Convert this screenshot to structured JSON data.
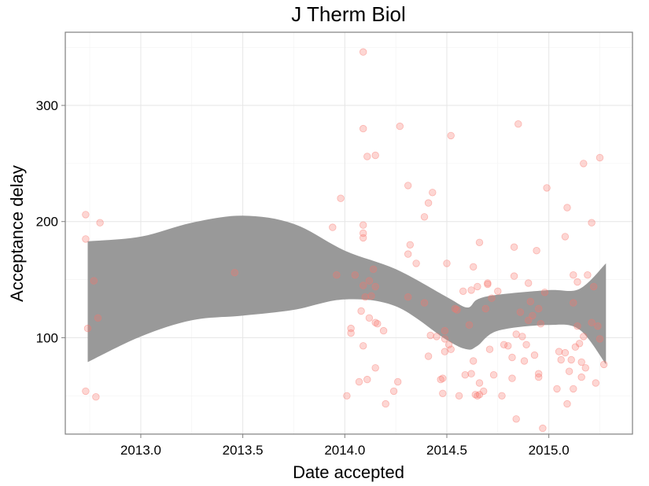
{
  "chart_data": {
    "type": "scatter",
    "title": "J Therm Biol",
    "xlabel": "Date accepted",
    "ylabel": "Acceptance delay",
    "xlim": [
      2012.63,
      2015.41
    ],
    "ylim": [
      17,
      363
    ],
    "xticks": [
      2013.0,
      2013.5,
      2014.0,
      2014.5,
      2015.0
    ],
    "xtick_labels": [
      "2013.0",
      "2013.5",
      "2014.0",
      "2014.5",
      "2015.0"
    ],
    "yticks": [
      100,
      200,
      300
    ],
    "ytick_labels": [
      "100",
      "200",
      "300"
    ],
    "grid": true,
    "point_color": "#f8766d",
    "band_color": "#999999",
    "points": [
      [
        2012.73,
        206
      ],
      [
        2012.73,
        185
      ],
      [
        2012.74,
        108
      ],
      [
        2012.73,
        54
      ],
      [
        2012.78,
        49
      ],
      [
        2012.77,
        149
      ],
      [
        2012.8,
        199
      ],
      [
        2012.79,
        117
      ],
      [
        2013.46,
        156
      ],
      [
        2013.94,
        195
      ],
      [
        2013.96,
        154
      ],
      [
        2013.98,
        220
      ],
      [
        2014.01,
        50
      ],
      [
        2014.03,
        108
      ],
      [
        2014.03,
        104
      ],
      [
        2014.05,
        154
      ],
      [
        2014.07,
        62
      ],
      [
        2014.08,
        123
      ],
      [
        2014.09,
        93
      ],
      [
        2014.09,
        346
      ],
      [
        2014.09,
        280
      ],
      [
        2014.09,
        197
      ],
      [
        2014.09,
        190
      ],
      [
        2014.09,
        186
      ],
      [
        2014.09,
        145
      ],
      [
        2014.1,
        135
      ],
      [
        2014.11,
        64
      ],
      [
        2014.11,
        256
      ],
      [
        2014.12,
        117
      ],
      [
        2014.12,
        149
      ],
      [
        2014.13,
        136
      ],
      [
        2014.14,
        159
      ],
      [
        2014.15,
        74
      ],
      [
        2014.15,
        113
      ],
      [
        2014.15,
        144
      ],
      [
        2014.16,
        112
      ],
      [
        2014.15,
        257
      ],
      [
        2014.19,
        106
      ],
      [
        2014.2,
        43
      ],
      [
        2014.24,
        54
      ],
      [
        2014.26,
        62
      ],
      [
        2014.27,
        282
      ],
      [
        2014.31,
        231
      ],
      [
        2014.31,
        172
      ],
      [
        2014.31,
        135
      ],
      [
        2014.32,
        180
      ],
      [
        2014.35,
        164
      ],
      [
        2014.39,
        204
      ],
      [
        2014.39,
        130
      ],
      [
        2014.41,
        216
      ],
      [
        2014.41,
        84
      ],
      [
        2014.42,
        102
      ],
      [
        2014.43,
        225
      ],
      [
        2014.45,
        101
      ],
      [
        2014.47,
        64
      ],
      [
        2014.48,
        52
      ],
      [
        2014.48,
        65
      ],
      [
        2014.49,
        88
      ],
      [
        2014.49,
        106
      ],
      [
        2014.49,
        99
      ],
      [
        2014.5,
        164
      ],
      [
        2014.51,
        94
      ],
      [
        2014.52,
        274
      ],
      [
        2014.52,
        90
      ],
      [
        2014.54,
        125
      ],
      [
        2014.55,
        124
      ],
      [
        2014.56,
        50
      ],
      [
        2014.58,
        140
      ],
      [
        2014.59,
        68
      ],
      [
        2014.61,
        111
      ],
      [
        2014.62,
        69
      ],
      [
        2014.62,
        141
      ],
      [
        2014.63,
        161
      ],
      [
        2014.63,
        80
      ],
      [
        2014.64,
        51
      ],
      [
        2014.65,
        50
      ],
      [
        2014.65,
        144
      ],
      [
        2014.66,
        182
      ],
      [
        2014.66,
        61
      ],
      [
        2014.66,
        51
      ],
      [
        2014.68,
        54
      ],
      [
        2014.69,
        125
      ],
      [
        2014.7,
        147
      ],
      [
        2014.7,
        146
      ],
      [
        2014.71,
        90
      ],
      [
        2014.72,
        134
      ],
      [
        2014.73,
        68
      ],
      [
        2014.75,
        140
      ],
      [
        2014.77,
        50
      ],
      [
        2014.78,
        94
      ],
      [
        2014.8,
        93
      ],
      [
        2014.82,
        65
      ],
      [
        2014.82,
        83
      ],
      [
        2014.83,
        178
      ],
      [
        2014.83,
        153
      ],
      [
        2014.84,
        103
      ],
      [
        2014.84,
        30
      ],
      [
        2014.85,
        284
      ],
      [
        2014.86,
        122
      ],
      [
        2014.87,
        101
      ],
      [
        2014.88,
        80
      ],
      [
        2014.89,
        94
      ],
      [
        2014.9,
        115
      ],
      [
        2014.9,
        147
      ],
      [
        2014.91,
        131
      ],
      [
        2014.92,
        119
      ],
      [
        2014.93,
        85
      ],
      [
        2014.94,
        175
      ],
      [
        2014.95,
        69
      ],
      [
        2014.95,
        66
      ],
      [
        2014.95,
        125
      ],
      [
        2014.96,
        112
      ],
      [
        2014.97,
        22
      ],
      [
        2014.98,
        139
      ],
      [
        2014.99,
        229
      ],
      [
        2015.04,
        56
      ],
      [
        2015.05,
        88
      ],
      [
        2015.06,
        81
      ],
      [
        2015.08,
        187
      ],
      [
        2015.08,
        87
      ],
      [
        2015.09,
        43
      ],
      [
        2015.09,
        212
      ],
      [
        2015.1,
        71
      ],
      [
        2015.11,
        81
      ],
      [
        2015.12,
        130
      ],
      [
        2015.12,
        56
      ],
      [
        2015.12,
        154
      ],
      [
        2015.13,
        92
      ],
      [
        2015.14,
        148
      ],
      [
        2015.14,
        110
      ],
      [
        2015.15,
        95
      ],
      [
        2015.16,
        79
      ],
      [
        2015.16,
        66
      ],
      [
        2015.17,
        250
      ],
      [
        2015.17,
        101
      ],
      [
        2015.18,
        74
      ],
      [
        2015.19,
        154
      ],
      [
        2015.21,
        199
      ],
      [
        2015.21,
        113
      ],
      [
        2015.22,
        144
      ],
      [
        2015.23,
        61
      ],
      [
        2015.24,
        110
      ],
      [
        2015.25,
        99
      ],
      [
        2015.25,
        255
      ],
      [
        2015.27,
        77
      ]
    ],
    "band": {
      "x": [
        2012.74,
        2013.0,
        2013.25,
        2013.5,
        2013.75,
        2014.0,
        2014.25,
        2014.5,
        2014.6,
        2014.65,
        2014.75,
        2015.0,
        2015.15,
        2015.28
      ],
      "upper": [
        183,
        187,
        199,
        205,
        198,
        175,
        159,
        135,
        126,
        133,
        137,
        141,
        142,
        164
      ],
      "lower": [
        79,
        101,
        115,
        119,
        124,
        133,
        127,
        98,
        90,
        93,
        106,
        111,
        107,
        77
      ]
    }
  }
}
